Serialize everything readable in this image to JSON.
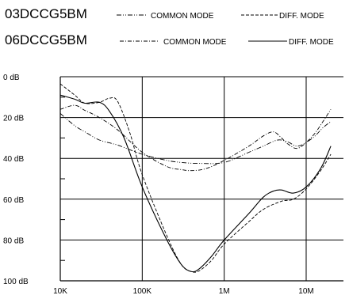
{
  "chart_data": {
    "type": "line",
    "title": "",
    "xlabel": "",
    "ylabel": "",
    "x_scale": "log",
    "xlim": [
      10000,
      20000000
    ],
    "ylim": [
      0,
      100
    ],
    "y_inverted": true,
    "grid": true,
    "x_ticks": [
      {
        "value": 10000,
        "label": "10K"
      },
      {
        "value": 100000,
        "label": "100K"
      },
      {
        "value": 1000000,
        "label": "1M"
      },
      {
        "value": 10000000,
        "label": "10M"
      }
    ],
    "y_ticks": [
      {
        "value": 0,
        "label": "0 dB"
      },
      {
        "value": 20,
        "label": "20 dB"
      },
      {
        "value": 40,
        "label": "40 dB"
      },
      {
        "value": 60,
        "label": "60 dB"
      },
      {
        "value": 80,
        "label": "80 dB"
      },
      {
        "value": 100,
        "label": "100 dB"
      }
    ],
    "legend": [
      {
        "model": "03DCCG5BM",
        "entries": [
          {
            "label": "COMMON MODE",
            "series": 0
          },
          {
            "label": "DIFF. MODE",
            "series": 1
          }
        ]
      },
      {
        "model": "06DCCG5BM",
        "entries": [
          {
            "label": "COMMON MODE",
            "series": 2
          },
          {
            "label": "DIFF. MODE",
            "series": 3
          }
        ]
      }
    ],
    "series": [
      {
        "model": "03DCCG5BM",
        "mode": "COMMON MODE",
        "dash": "dashdotdot",
        "points": [
          [
            10000,
            18
          ],
          [
            15000,
            24
          ],
          [
            20000,
            27
          ],
          [
            30000,
            31
          ],
          [
            50000,
            33.5
          ],
          [
            100000,
            38
          ],
          [
            200000,
            41
          ],
          [
            300000,
            42
          ],
          [
            500000,
            42.5
          ],
          [
            1000000,
            42
          ],
          [
            2000000,
            37
          ],
          [
            3000000,
            34
          ],
          [
            4500000,
            31
          ],
          [
            6000000,
            32
          ],
          [
            8000000,
            34
          ],
          [
            12000000,
            30
          ],
          [
            16000000,
            25
          ],
          [
            20000000,
            22
          ]
        ]
      },
      {
        "model": "03DCCG5BM",
        "mode": "DIFF. MODE",
        "dash": "dashed",
        "points": [
          [
            10000,
            3.5
          ],
          [
            15000,
            9
          ],
          [
            20000,
            13
          ],
          [
            30000,
            12.5
          ],
          [
            40000,
            10.5
          ],
          [
            50000,
            12
          ],
          [
            70000,
            27
          ],
          [
            100000,
            48
          ],
          [
            200000,
            78
          ],
          [
            300000,
            92
          ],
          [
            400000,
            95.5
          ],
          [
            500000,
            95
          ],
          [
            700000,
            90
          ],
          [
            1000000,
            82
          ],
          [
            2000000,
            71
          ],
          [
            3000000,
            65
          ],
          [
            5000000,
            61
          ],
          [
            7000000,
            60
          ],
          [
            10000000,
            55
          ],
          [
            15000000,
            46
          ],
          [
            20000000,
            38
          ]
        ]
      },
      {
        "model": "06DCCG5BM",
        "mode": "COMMON MODE",
        "dash": "dashdot",
        "points": [
          [
            10000,
            16
          ],
          [
            15000,
            14
          ],
          [
            20000,
            16.5
          ],
          [
            30000,
            20
          ],
          [
            50000,
            26
          ],
          [
            100000,
            37
          ],
          [
            200000,
            44
          ],
          [
            300000,
            45.5
          ],
          [
            400000,
            46
          ],
          [
            600000,
            45
          ],
          [
            1000000,
            41
          ],
          [
            2000000,
            34
          ],
          [
            3000000,
            29
          ],
          [
            4000000,
            27
          ],
          [
            5000000,
            30
          ],
          [
            6000000,
            33
          ],
          [
            8000000,
            35
          ],
          [
            12000000,
            29
          ],
          [
            16000000,
            22
          ],
          [
            20000000,
            16
          ]
        ]
      },
      {
        "model": "06DCCG5BM",
        "mode": "DIFF. MODE",
        "dash": "solid",
        "points": [
          [
            10000,
            9
          ],
          [
            15000,
            11
          ],
          [
            20000,
            13
          ],
          [
            30000,
            12.5
          ],
          [
            40000,
            17
          ],
          [
            60000,
            30
          ],
          [
            100000,
            54
          ],
          [
            200000,
            80
          ],
          [
            300000,
            92
          ],
          [
            400000,
            95.5
          ],
          [
            500000,
            94
          ],
          [
            700000,
            88
          ],
          [
            1000000,
            80
          ],
          [
            2000000,
            67
          ],
          [
            3000000,
            59
          ],
          [
            4000000,
            56
          ],
          [
            5000000,
            55.5
          ],
          [
            7000000,
            57
          ],
          [
            10000000,
            54
          ],
          [
            15000000,
            45
          ],
          [
            20000000,
            34
          ]
        ]
      }
    ]
  }
}
